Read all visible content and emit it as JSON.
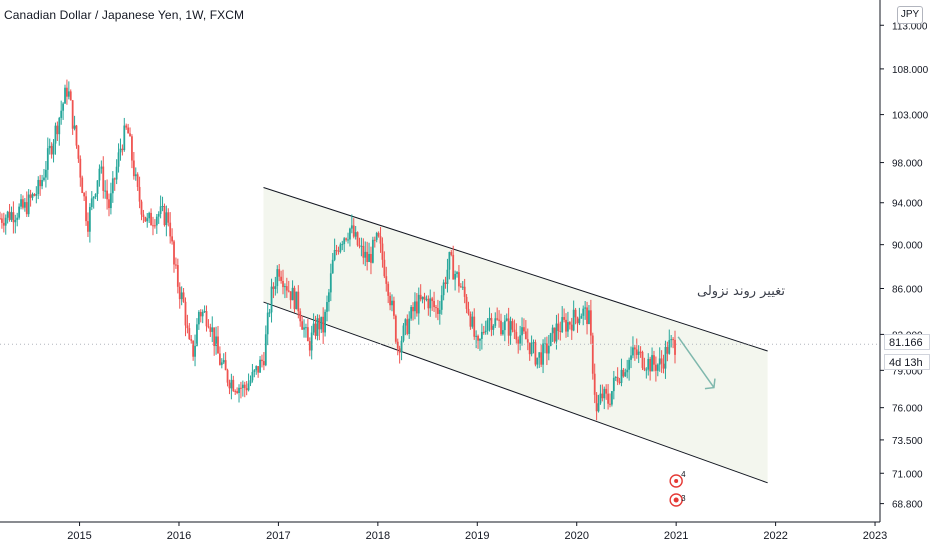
{
  "header": {
    "title": "Canadian Dollar / Japanese Yen, 1W, FXCM",
    "currency_button": "JPY"
  },
  "price_badges": {
    "last_price": "81.166",
    "countdown": "4d 13h"
  },
  "annotation": {
    "text": "تغییر روند نزولی"
  },
  "event_markers": [
    {
      "label": "4"
    },
    {
      "label": "3"
    }
  ],
  "colors": {
    "up": "#26a69a",
    "down": "#ef5350",
    "channel_fill": "#f3f6ee",
    "arrow": "#7fb8ad",
    "grid_dots": "#b2b5be"
  },
  "chart_data": {
    "type": "candlestick",
    "title": "Canadian Dollar / Japanese Yen, 1W, FXCM",
    "xlabel": "",
    "ylabel": "",
    "x_ticks": [
      "2015",
      "2016",
      "2017",
      "2018",
      "2019",
      "2020",
      "2021",
      "2022",
      "2023"
    ],
    "y_ticks": [
      "68.800",
      "71.000",
      "73.500",
      "76.000",
      "79.000",
      "82.000",
      "86.000",
      "90.000",
      "94.000",
      "98.000",
      "103.000",
      "108.000",
      "113.000"
    ],
    "y_scale": "log",
    "ylim": [
      67.5,
      116
    ],
    "xlim": [
      2014.2,
      2023.05
    ],
    "last_price": 81.166,
    "grid": false,
    "anchors": [
      [
        2014.2,
        92.5
      ],
      [
        2014.45,
        93.5
      ],
      [
        2014.6,
        95.5
      ],
      [
        2014.75,
        101.0
      ],
      [
        2014.88,
        106.0
      ],
      [
        2014.98,
        99.0
      ],
      [
        2015.08,
        92.0
      ],
      [
        2015.2,
        97.5
      ],
      [
        2015.3,
        93.5
      ],
      [
        2015.42,
        100.0
      ],
      [
        2015.48,
        101.5
      ],
      [
        2015.58,
        95.0
      ],
      [
        2015.68,
        92.0
      ],
      [
        2015.78,
        93.0
      ],
      [
        2015.9,
        92.5
      ],
      [
        2015.95,
        88.0
      ],
      [
        2016.0,
        86.0
      ],
      [
        2016.05,
        84.5
      ],
      [
        2016.1,
        81.0
      ],
      [
        2016.15,
        80.5
      ],
      [
        2016.2,
        84.0
      ],
      [
        2016.3,
        83.5
      ],
      [
        2016.4,
        80.0
      ],
      [
        2016.48,
        78.5
      ],
      [
        2016.55,
        78.0
      ],
      [
        2016.65,
        77.5
      ],
      [
        2016.75,
        78.5
      ],
      [
        2016.85,
        80.0
      ],
      [
        2016.92,
        85.0
      ],
      [
        2017.0,
        88.0
      ],
      [
        2017.1,
        86.0
      ],
      [
        2017.2,
        84.5
      ],
      [
        2017.3,
        81.0
      ],
      [
        2017.4,
        83.0
      ],
      [
        2017.45,
        82.5
      ],
      [
        2017.5,
        85.0
      ],
      [
        2017.55,
        88.5
      ],
      [
        2017.62,
        90.5
      ],
      [
        2017.72,
        91.5
      ],
      [
        2017.82,
        89.5
      ],
      [
        2017.9,
        88.5
      ],
      [
        2018.0,
        90.5
      ],
      [
        2018.1,
        86.5
      ],
      [
        2018.2,
        81.0
      ],
      [
        2018.28,
        82.5
      ],
      [
        2018.38,
        84.5
      ],
      [
        2018.5,
        85.0
      ],
      [
        2018.6,
        84.0
      ],
      [
        2018.72,
        88.5
      ],
      [
        2018.82,
        86.5
      ],
      [
        2018.92,
        84.0
      ],
      [
        2019.0,
        80.5
      ],
      [
        2019.1,
        83.5
      ],
      [
        2019.2,
        83.0
      ],
      [
        2019.35,
        82.5
      ],
      [
        2019.5,
        81.5
      ],
      [
        2019.6,
        80.0
      ],
      [
        2019.68,
        80.5
      ],
      [
        2019.8,
        82.5
      ],
      [
        2019.92,
        83.0
      ],
      [
        2020.05,
        84.0
      ],
      [
        2020.12,
        83.5
      ],
      [
        2020.2,
        75.5
      ],
      [
        2020.25,
        77.0
      ],
      [
        2020.32,
        76.5
      ],
      [
        2020.4,
        78.5
      ],
      [
        2020.5,
        79.5
      ],
      [
        2020.58,
        80.5
      ],
      [
        2020.65,
        80.0
      ],
      [
        2020.75,
        79.5
      ],
      [
        2020.85,
        79.5
      ],
      [
        2020.92,
        81.0
      ],
      [
        2021.0,
        81.166
      ]
    ]
  }
}
